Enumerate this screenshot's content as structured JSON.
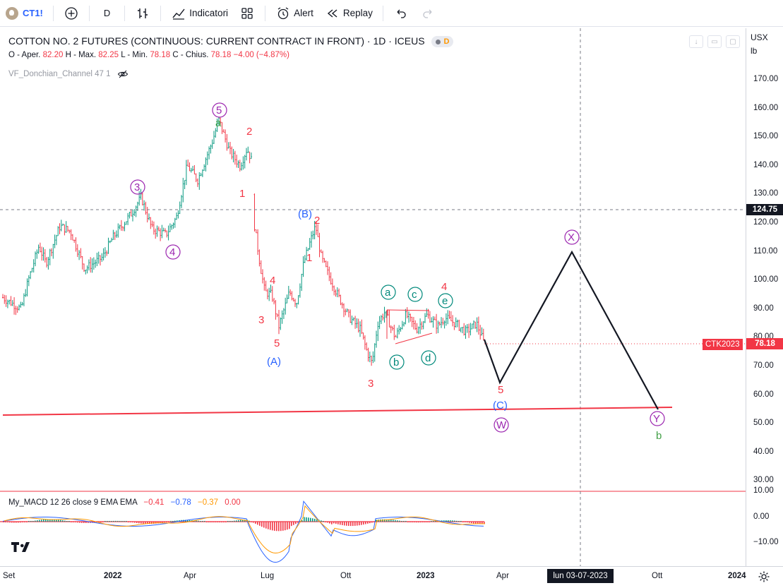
{
  "toolbar": {
    "symbol": "CT1!",
    "interval": "D",
    "indicators_label": "Indicatori",
    "alert_label": "Alert",
    "replay_label": "Replay"
  },
  "legend": {
    "title": "COTTON NO. 2 FUTURES (CONTINUOUS: CURRENT CONTRACT IN FRONT) · 1D · ICEUS",
    "title_tag": "D",
    "ohlc": {
      "open_label": "O - Aper.",
      "open": "82.20",
      "high_label": "H - Max.",
      "high": "82.25",
      "low_label": "L - Min.",
      "low": "78.18",
      "close_label": "C - Chius.",
      "close": "78.18",
      "change": "−4.00 (−4.87%)"
    },
    "indicator": "VF_Donchian_Channel 47 1",
    "macd": {
      "name": "My_MACD 12 26 close 9 EMA EMA",
      "v1": "−0.41",
      "v2": "−0.78",
      "v3": "−0.37",
      "v4": "0.00"
    }
  },
  "price_axis": {
    "currency": "USX",
    "unit": "lb",
    "ticks": [
      "170.00",
      "160.00",
      "150.00",
      "140.00",
      "130.00",
      "120.00",
      "110.00",
      "100.00",
      "90.00",
      "80.00",
      "70.00",
      "60.00",
      "50.00",
      "40.00",
      "30.00"
    ],
    "crosshair_price": "124.75",
    "last_price": "78.18",
    "last_price_tag": "CTK2023",
    "macd_ticks": [
      "10.00",
      "0.00",
      "−10.00"
    ]
  },
  "time_axis": {
    "labels": [
      "Set",
      "2022",
      "Apr",
      "Lug",
      "Ott",
      "2023",
      "Apr",
      "Ott",
      "2024"
    ],
    "crosshair_date": "lun 03-07-2023"
  },
  "wave_labels": {
    "a_green": "a",
    "w5": "5",
    "w3": "3",
    "w4": "4",
    "r2_top": "2",
    "r1": "1",
    "B": "(B)",
    "r2_b": "2",
    "r1_b": "1",
    "r4": "4",
    "r3": "3",
    "r5": "5",
    "A": "(A)",
    "ca": "a",
    "cb": "b",
    "cc": "c",
    "cd": "d",
    "ce": "e",
    "r4_e": "4",
    "r3_low": "3",
    "r5_proj": "5",
    "C": "(C)",
    "W": "W",
    "X": "X",
    "Y": "Y",
    "b_green": "b"
  },
  "colors": {
    "up": "#089981",
    "down": "#f23645",
    "purple": "#9c27b0",
    "blue": "#2962ff",
    "green": "#43a047",
    "teal": "#00897b"
  }
}
